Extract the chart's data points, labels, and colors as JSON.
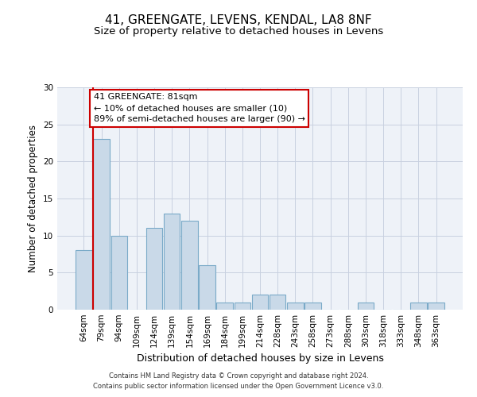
{
  "title": "41, GREENGATE, LEVENS, KENDAL, LA8 8NF",
  "subtitle": "Size of property relative to detached houses in Levens",
  "xlabel": "Distribution of detached houses by size in Levens",
  "ylabel": "Number of detached properties",
  "categories": [
    "64sqm",
    "79sqm",
    "94sqm",
    "109sqm",
    "124sqm",
    "139sqm",
    "154sqm",
    "169sqm",
    "184sqm",
    "199sqm",
    "214sqm",
    "228sqm",
    "243sqm",
    "258sqm",
    "273sqm",
    "288sqm",
    "303sqm",
    "318sqm",
    "333sqm",
    "348sqm",
    "363sqm"
  ],
  "values": [
    8,
    23,
    10,
    0,
    11,
    13,
    12,
    6,
    1,
    1,
    2,
    2,
    1,
    1,
    0,
    0,
    1,
    0,
    0,
    1,
    1
  ],
  "bar_color": "#c9d9e8",
  "bar_edge_color": "#7aaac8",
  "bar_edge_width": 0.8,
  "vline_index": 1,
  "vline_color": "#cc0000",
  "annotation_text": "41 GREENGATE: 81sqm\n← 10% of detached houses are smaller (10)\n89% of semi-detached houses are larger (90) →",
  "annotation_box_color": "white",
  "annotation_box_edge_color": "#cc0000",
  "ylim": [
    0,
    30
  ],
  "yticks": [
    0,
    5,
    10,
    15,
    20,
    25,
    30
  ],
  "grid_color": "#c8d0e0",
  "background_color": "#eef2f8",
  "footer_line1": "Contains HM Land Registry data © Crown copyright and database right 2024.",
  "footer_line2": "Contains public sector information licensed under the Open Government Licence v3.0.",
  "title_fontsize": 11,
  "subtitle_fontsize": 9.5,
  "xlabel_fontsize": 9,
  "ylabel_fontsize": 8.5,
  "tick_fontsize": 7.5,
  "annotation_fontsize": 8,
  "footer_fontsize": 6
}
